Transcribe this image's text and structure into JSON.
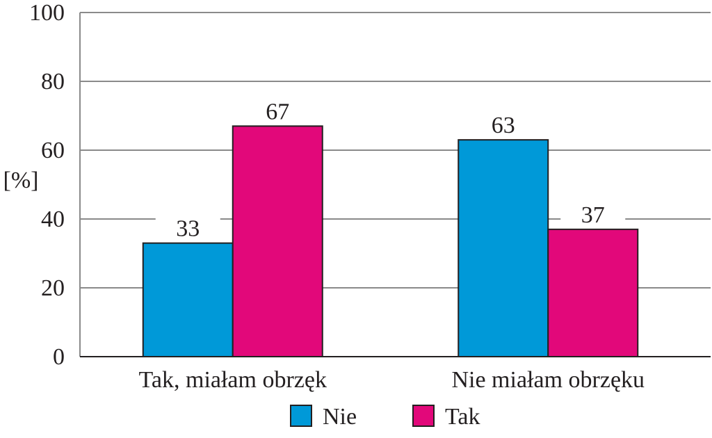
{
  "chart_data": {
    "type": "bar",
    "title": "",
    "xlabel": "",
    "ylabel": "[%]",
    "ylim": [
      0,
      100
    ],
    "yticks": [
      0,
      20,
      40,
      60,
      80,
      100
    ],
    "categories": [
      "Tak, miałam obrzęk",
      "Nie miałam obrzęku"
    ],
    "series": [
      {
        "name": "Nie",
        "color": "#0099d8",
        "values": [
          33,
          63
        ]
      },
      {
        "name": "Tak",
        "color": "#e2087a",
        "values": [
          67,
          37
        ]
      }
    ],
    "grid": true,
    "legend": "bottom-center"
  }
}
